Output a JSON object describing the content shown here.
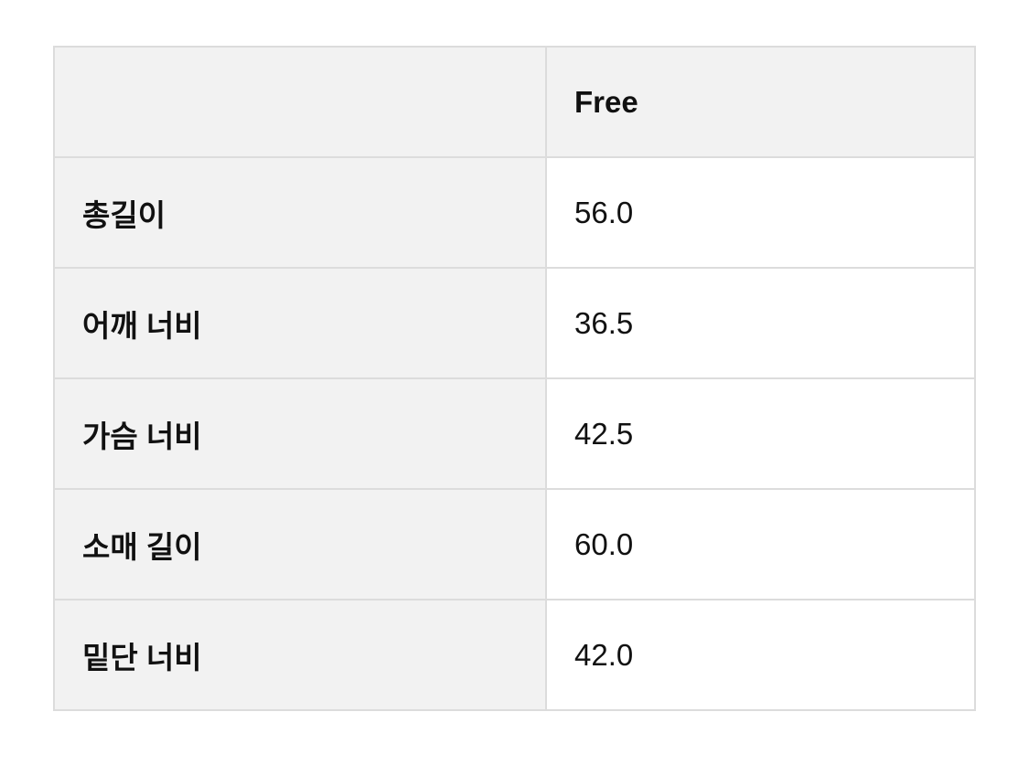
{
  "table": {
    "header": [
      "",
      "Free"
    ],
    "rows": [
      {
        "label": "총길이",
        "value": "56.0"
      },
      {
        "label": "어깨 너비",
        "value": "36.5"
      },
      {
        "label": "가슴 너비",
        "value": "42.5"
      },
      {
        "label": "소매 길이",
        "value": "60.0"
      },
      {
        "label": "밑단 너비",
        "value": "42.0"
      }
    ]
  },
  "colors": {
    "label_bg": "#f2f2f2",
    "border": "#dcdcdc",
    "value_bg": "#ffffff"
  }
}
